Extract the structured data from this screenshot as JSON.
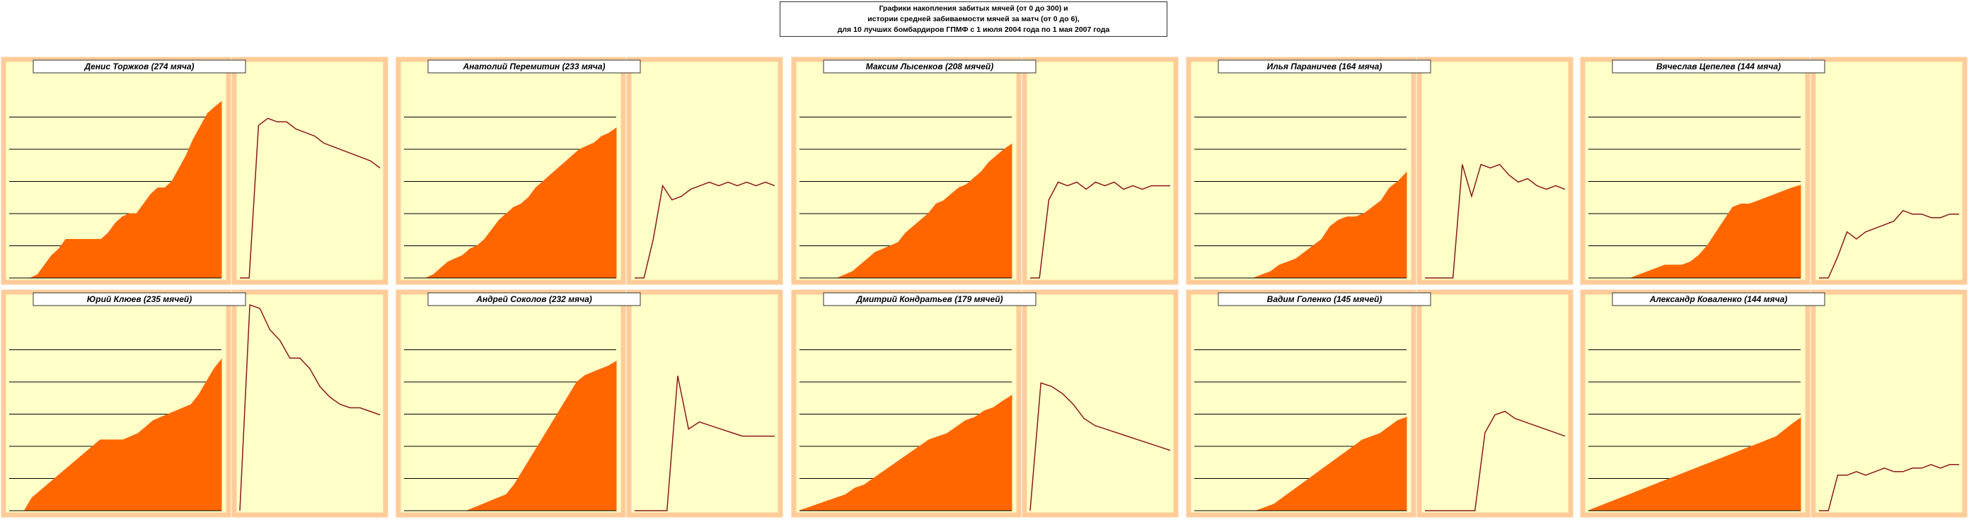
{
  "title": {
    "line1": "Графики накопления забитых мячей (от 0 до 300) и",
    "line2": "истории средней забиваемости мячей за матч (от 0 до 6),",
    "line3": "для 10 лучших бомбардиров ГПМФ с 1 июля 2004 года по 1 мая 2007 года"
  },
  "colors": {
    "panel_bg": "#ffffc8",
    "panel_border": "#ffcc99",
    "area_fill": "#ff6600",
    "line": "#8b1a1a",
    "grid": "#000000"
  },
  "chart_data": [
    {
      "player": "Денис Торжков (274 мяча)",
      "cumulative": [
        0,
        0,
        0,
        0,
        5,
        20,
        35,
        45,
        60,
        60,
        60,
        60,
        60,
        60,
        70,
        85,
        95,
        100,
        100,
        115,
        130,
        140,
        140,
        150,
        170,
        190,
        215,
        235,
        255,
        265,
        274
      ],
      "average": [
        0,
        0,
        4.3,
        4.5,
        4.4,
        4.4,
        4.2,
        4.1,
        4.0,
        3.8,
        3.7,
        3.6,
        3.5,
        3.4,
        3.3,
        3.1
      ]
    },
    {
      "player": "Анатолий Перемитин (233 мяча)",
      "cumulative": [
        0,
        0,
        0,
        0,
        5,
        15,
        25,
        30,
        35,
        45,
        50,
        60,
        75,
        90,
        100,
        110,
        115,
        125,
        140,
        150,
        160,
        170,
        180,
        190,
        200,
        205,
        210,
        220,
        225,
        233
      ],
      "average": [
        0,
        0,
        1.1,
        2.6,
        2.2,
        2.3,
        2.5,
        2.6,
        2.7,
        2.6,
        2.7,
        2.6,
        2.7,
        2.6,
        2.7,
        2.6
      ]
    },
    {
      "player": "Максим Лысенков (208 мячей)",
      "cumulative": [
        0,
        0,
        0,
        0,
        0,
        0,
        5,
        10,
        20,
        30,
        40,
        45,
        50,
        55,
        70,
        80,
        90,
        100,
        115,
        120,
        130,
        140,
        145,
        155,
        165,
        180,
        190,
        200,
        208
      ],
      "average": [
        0,
        0,
        2.2,
        2.7,
        2.6,
        2.7,
        2.5,
        2.7,
        2.6,
        2.7,
        2.5,
        2.6,
        2.5,
        2.6,
        2.6,
        2.6
      ]
    },
    {
      "player": "Илья Параничев (164 мяча)",
      "cumulative": [
        0,
        0,
        0,
        0,
        0,
        0,
        0,
        0,
        5,
        10,
        20,
        25,
        30,
        40,
        50,
        60,
        80,
        90,
        95,
        95,
        100,
        110,
        120,
        140,
        150,
        164
      ],
      "average": [
        0,
        0,
        0,
        0,
        3.2,
        2.3,
        3.2,
        3.1,
        3.2,
        2.9,
        2.7,
        2.8,
        2.6,
        2.5,
        2.6,
        2.5
      ]
    },
    {
      "player": "Вячеслав Цепелев (144 мяча)",
      "cumulative": [
        0,
        0,
        0,
        0,
        0,
        0,
        5,
        10,
        15,
        20,
        20,
        20,
        25,
        35,
        50,
        70,
        90,
        110,
        115,
        115,
        120,
        125,
        130,
        135,
        140,
        144
      ],
      "average": [
        0,
        0,
        0.6,
        1.3,
        1.1,
        1.3,
        1.4,
        1.5,
        1.6,
        1.9,
        1.8,
        1.8,
        1.7,
        1.7,
        1.8,
        1.8
      ]
    },
    {
      "player": "Юрий Клюев (235 мячей)",
      "cumulative": [
        0,
        0,
        0,
        20,
        30,
        40,
        50,
        60,
        70,
        80,
        90,
        100,
        110,
        110,
        110,
        110,
        115,
        120,
        130,
        140,
        145,
        150,
        155,
        160,
        165,
        180,
        200,
        220,
        235
      ],
      "average": [
        0,
        5.8,
        5.7,
        5.1,
        4.8,
        4.3,
        4.3,
        4.0,
        3.5,
        3.2,
        3.0,
        2.9,
        2.9,
        2.8,
        2.7
      ]
    },
    {
      "player": "Андрей Соколов (232 мяча)",
      "cumulative": [
        0,
        0,
        0,
        0,
        0,
        0,
        0,
        0,
        0,
        5,
        10,
        15,
        20,
        25,
        40,
        60,
        80,
        100,
        120,
        140,
        160,
        180,
        200,
        210,
        215,
        220,
        225,
        232
      ],
      "average": [
        0,
        0,
        0,
        0,
        3.8,
        2.3,
        2.5,
        2.4,
        2.3,
        2.2,
        2.1,
        2.1,
        2.1,
        2.1
      ]
    },
    {
      "player": "Дмитрий Кондратьев (179 мячей)",
      "cumulative": [
        0,
        5,
        10,
        15,
        20,
        25,
        35,
        40,
        50,
        60,
        70,
        80,
        90,
        100,
        110,
        115,
        120,
        130,
        140,
        145,
        155,
        160,
        170,
        179
      ],
      "average": [
        0,
        3.6,
        3.5,
        3.3,
        3.0,
        2.6,
        2.4,
        2.3,
        2.2,
        2.1,
        2.0,
        1.9,
        1.8,
        1.7
      ]
    },
    {
      "player": "Вадим Голенко (145 мячей)",
      "cumulative": [
        0,
        0,
        0,
        0,
        0,
        0,
        0,
        0,
        5,
        10,
        20,
        30,
        40,
        50,
        60,
        70,
        80,
        90,
        100,
        110,
        115,
        120,
        130,
        140,
        145
      ],
      "average": [
        0,
        0,
        0,
        0,
        0,
        0,
        2.2,
        2.7,
        2.8,
        2.6,
        2.5,
        2.4,
        2.3,
        2.2,
        2.1
      ]
    },
    {
      "player": "Александр Коваленко (144 мяча)",
      "cumulative": [
        0,
        5,
        10,
        15,
        20,
        25,
        30,
        35,
        40,
        45,
        50,
        55,
        60,
        65,
        70,
        75,
        80,
        85,
        90,
        95,
        100,
        105,
        110,
        115,
        125,
        135,
        144
      ],
      "average": [
        0,
        0,
        1.0,
        1.0,
        1.1,
        1.0,
        1.1,
        1.2,
        1.1,
        1.1,
        1.2,
        1.2,
        1.3,
        1.2,
        1.3,
        1.3
      ]
    }
  ]
}
